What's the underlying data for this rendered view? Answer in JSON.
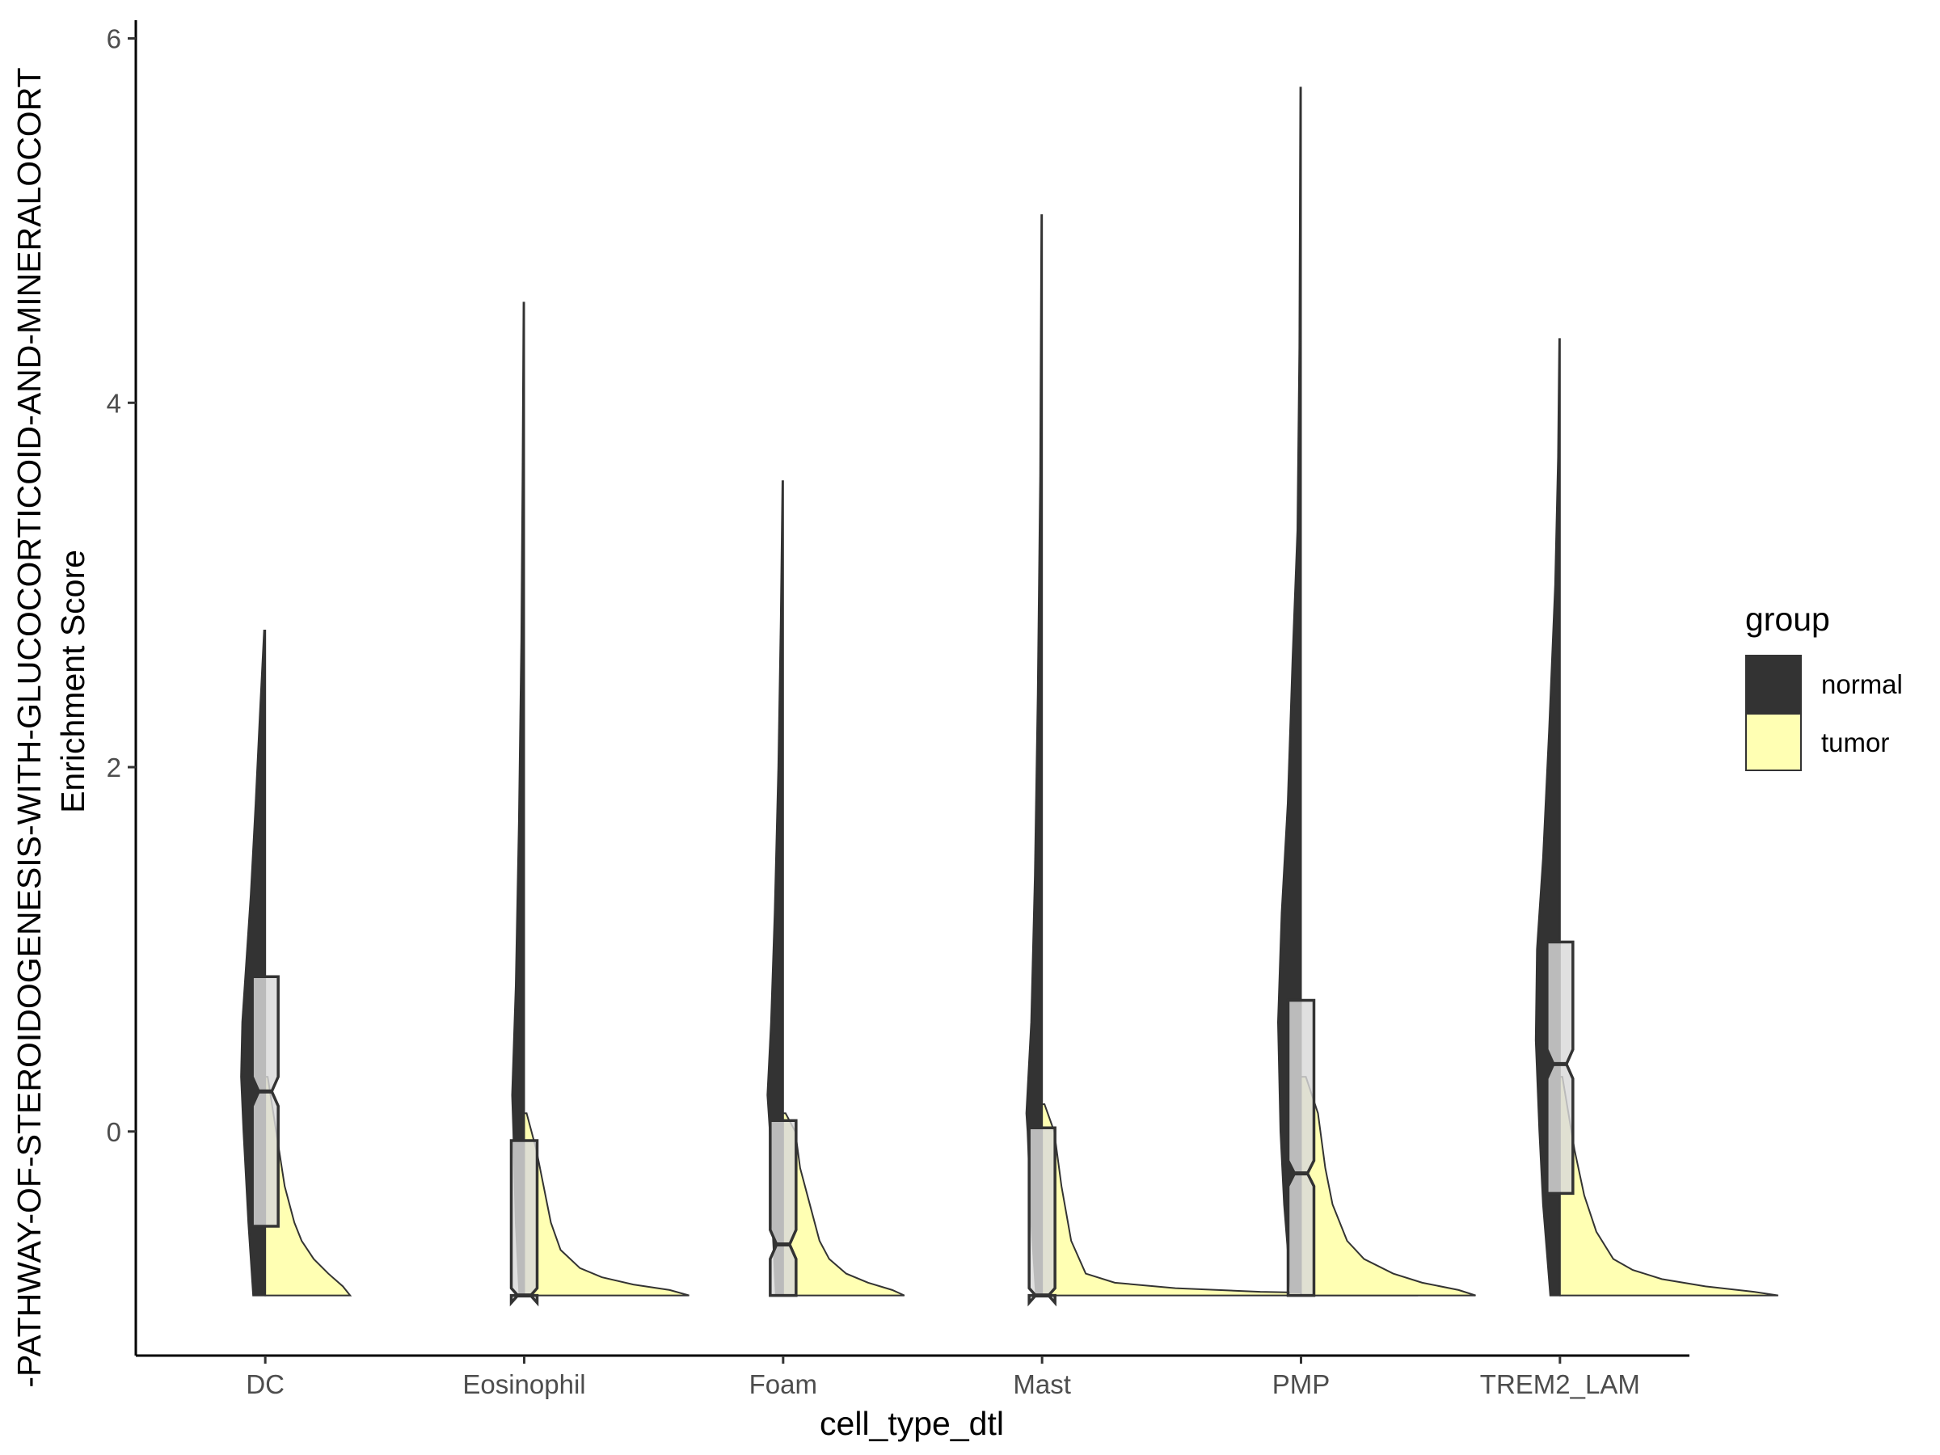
{
  "chart_data": {
    "type": "violin",
    "title": "",
    "xlabel": "cell_type_dtl",
    "ylabel_line1": "-PATHWAY-OF-STEROIDOGENESIS-WITH-GLUCOCORTICOID-AND-MINERALOCORT",
    "ylabel_line2": "Enrichment Score",
    "ylim": [
      -1.23,
      6.1
    ],
    "yticks": [
      0,
      2,
      4,
      6
    ],
    "ytick_labels": [
      "0",
      "2",
      "4",
      "6"
    ],
    "categories": [
      "DC",
      "Eosinophil",
      "Foam",
      "Mast",
      "PMP",
      "TREM2_LAM"
    ],
    "legend": {
      "title": "group",
      "entries": [
        {
          "name": "normal",
          "color": "#333333"
        },
        {
          "name": "tumor",
          "color": "#FFFFB3"
        }
      ]
    },
    "series": [
      {
        "name": "normal",
        "color": "#333333",
        "violins": [
          {
            "category": "DC",
            "min": -0.9,
            "max": 2.75,
            "profile": [
              [
                -0.9,
                0.5
              ],
              [
                -0.5,
                0.7
              ],
              [
                0,
                0.9
              ],
              [
                0.3,
                1.0
              ],
              [
                0.6,
                0.95
              ],
              [
                0.9,
                0.8
              ],
              [
                1.3,
                0.6
              ],
              [
                1.8,
                0.4
              ],
              [
                2.3,
                0.22
              ],
              [
                2.75,
                0.05
              ]
            ]
          },
          {
            "category": "Eosinophil",
            "min": -0.9,
            "max": 4.55,
            "profile": [
              [
                -0.9,
                0.2
              ],
              [
                -0.5,
                0.35
              ],
              [
                0,
                0.45
              ],
              [
                0.2,
                0.5
              ],
              [
                0.8,
                0.35
              ],
              [
                1.7,
                0.22
              ],
              [
                2.7,
                0.12
              ],
              [
                3.6,
                0.07
              ],
              [
                4.55,
                0.03
              ]
            ]
          },
          {
            "category": "Foam",
            "min": -0.9,
            "max": 3.57,
            "profile": [
              [
                -0.9,
                0.3
              ],
              [
                -0.5,
                0.45
              ],
              [
                0,
                0.55
              ],
              [
                0.2,
                0.65
              ],
              [
                0.6,
                0.5
              ],
              [
                1.2,
                0.35
              ],
              [
                2.0,
                0.2
              ],
              [
                2.8,
                0.1
              ],
              [
                3.57,
                0.03
              ]
            ]
          },
          {
            "category": "Mast",
            "min": -0.9,
            "max": 5.03,
            "profile": [
              [
                -0.9,
                0.25
              ],
              [
                -0.5,
                0.45
              ],
              [
                0,
                0.6
              ],
              [
                0.1,
                0.65
              ],
              [
                0.6,
                0.45
              ],
              [
                1.4,
                0.3
              ],
              [
                2.4,
                0.18
              ],
              [
                3.6,
                0.08
              ],
              [
                5.03,
                0.03
              ]
            ]
          },
          {
            "category": "PMP",
            "min": -0.9,
            "max": 5.73,
            "profile": [
              [
                -0.9,
                0.4
              ],
              [
                -0.4,
                0.7
              ],
              [
                0,
                0.85
              ],
              [
                0.6,
                0.95
              ],
              [
                1.2,
                0.8
              ],
              [
                1.8,
                0.55
              ],
              [
                2.6,
                0.35
              ],
              [
                3.3,
                0.15
              ],
              [
                4.3,
                0.07
              ],
              [
                5.73,
                0.03
              ]
            ]
          },
          {
            "category": "TREM2_LAM",
            "min": -0.9,
            "max": 4.35,
            "profile": [
              [
                -0.9,
                0.4
              ],
              [
                -0.4,
                0.7
              ],
              [
                0,
                0.85
              ],
              [
                0.5,
                1.0
              ],
              [
                1.0,
                0.95
              ],
              [
                1.5,
                0.7
              ],
              [
                2.2,
                0.45
              ],
              [
                3.0,
                0.2
              ],
              [
                3.7,
                0.08
              ],
              [
                4.35,
                0.03
              ]
            ]
          }
        ]
      },
      {
        "name": "tumor",
        "color": "#FFFFB3",
        "violins": [
          {
            "category": "DC",
            "min": -0.9,
            "max": 0.3,
            "profile": [
              [
                -0.9,
                3.5
              ],
              [
                -0.85,
                3.2
              ],
              [
                -0.78,
                2.6
              ],
              [
                -0.7,
                2.0
              ],
              [
                -0.6,
                1.5
              ],
              [
                -0.5,
                1.2
              ],
              [
                -0.3,
                0.8
              ],
              [
                0,
                0.45
              ],
              [
                0.3,
                0.1
              ]
            ]
          },
          {
            "category": "Eosinophil",
            "min": -0.9,
            "max": 0.1,
            "profile": [
              [
                -0.9,
                6.8
              ],
              [
                -0.87,
                6.0
              ],
              [
                -0.84,
                4.5
              ],
              [
                -0.8,
                3.2
              ],
              [
                -0.75,
                2.3
              ],
              [
                -0.65,
                1.5
              ],
              [
                -0.5,
                1.1
              ],
              [
                -0.3,
                0.8
              ],
              [
                -0.1,
                0.5
              ],
              [
                0.1,
                0.1
              ]
            ]
          },
          {
            "category": "Foam",
            "min": -0.9,
            "max": 0.1,
            "profile": [
              [
                -0.9,
                5.0
              ],
              [
                -0.87,
                4.5
              ],
              [
                -0.83,
                3.5
              ],
              [
                -0.78,
                2.6
              ],
              [
                -0.7,
                1.9
              ],
              [
                -0.6,
                1.5
              ],
              [
                -0.4,
                1.1
              ],
              [
                -0.2,
                0.7
              ],
              [
                0,
                0.5
              ],
              [
                0.1,
                0.1
              ]
            ]
          },
          {
            "category": "Mast",
            "min": -0.9,
            "max": 0.15,
            "profile": [
              [
                -0.9,
                15.5
              ],
              [
                -0.89,
                13.0
              ],
              [
                -0.88,
                9.0
              ],
              [
                -0.86,
                5.5
              ],
              [
                -0.83,
                3.0
              ],
              [
                -0.78,
                1.8
              ],
              [
                -0.6,
                1.2
              ],
              [
                -0.3,
                0.8
              ],
              [
                0,
                0.5
              ],
              [
                0.15,
                0.1
              ]
            ]
          },
          {
            "category": "PMP",
            "min": -0.9,
            "max": 0.3,
            "profile": [
              [
                -0.9,
                7.2
              ],
              [
                -0.87,
                6.5
              ],
              [
                -0.83,
                5.0
              ],
              [
                -0.78,
                3.8
              ],
              [
                -0.7,
                2.6
              ],
              [
                -0.6,
                1.9
              ],
              [
                -0.4,
                1.3
              ],
              [
                -0.2,
                1.0
              ],
              [
                0.1,
                0.7
              ],
              [
                0.3,
                0.2
              ]
            ]
          },
          {
            "category": "TREM2_LAM",
            "min": -0.9,
            "max": 0.3,
            "profile": [
              [
                -0.9,
                9.0
              ],
              [
                -0.88,
                8.0
              ],
              [
                -0.85,
                6.0
              ],
              [
                -0.81,
                4.2
              ],
              [
                -0.76,
                3.0
              ],
              [
                -0.7,
                2.2
              ],
              [
                -0.55,
                1.5
              ],
              [
                -0.35,
                1.0
              ],
              [
                -0.1,
                0.6
              ],
              [
                0.3,
                0.1
              ]
            ]
          }
        ]
      }
    ],
    "boxplots": [
      {
        "category": "DC",
        "q1": -0.52,
        "median": 0.22,
        "q3": 0.85,
        "notch_low": 0.14,
        "notch_high": 0.3
      },
      {
        "category": "Eosinophil",
        "q1": -0.9,
        "median": -0.9,
        "q3": -0.05,
        "notch_low": -0.94,
        "notch_high": -0.86
      },
      {
        "category": "Foam",
        "q1": -0.9,
        "median": -0.62,
        "q3": 0.06,
        "notch_low": -0.7,
        "notch_high": -0.54
      },
      {
        "category": "Mast",
        "q1": -0.9,
        "median": -0.9,
        "q3": 0.02,
        "notch_low": -0.94,
        "notch_high": -0.86
      },
      {
        "category": "PMP",
        "q1": -0.9,
        "median": -0.23,
        "q3": 0.72,
        "notch_low": -0.3,
        "notch_high": -0.16
      },
      {
        "category": "TREM2_LAM",
        "q1": -0.34,
        "median": 0.37,
        "q3": 1.04,
        "notch_low": 0.29,
        "notch_high": 0.45
      }
    ]
  }
}
